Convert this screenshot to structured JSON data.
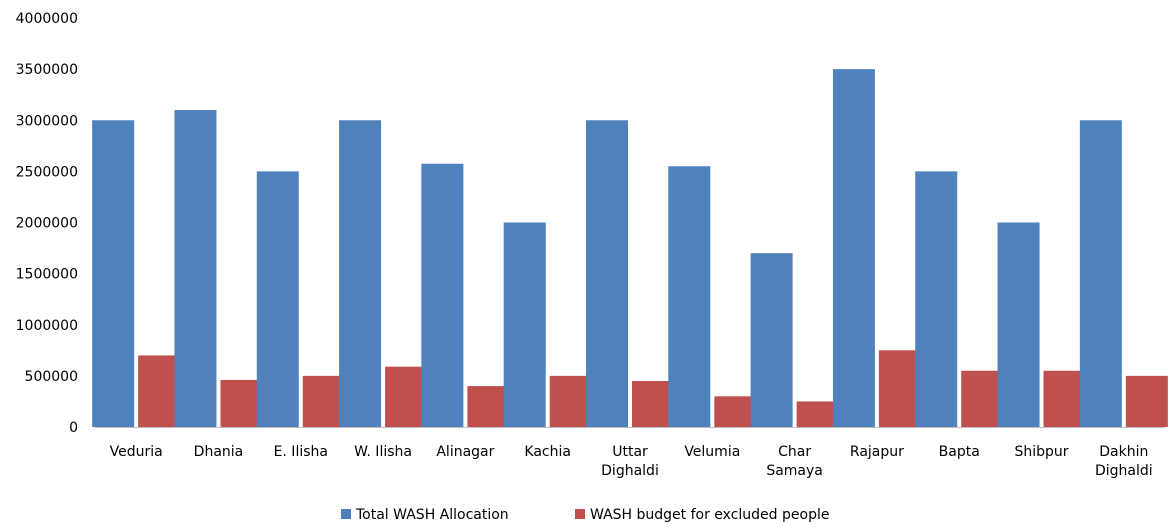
{
  "chart_data": {
    "type": "bar",
    "categories": [
      [
        "Veduria"
      ],
      [
        "Dhania"
      ],
      [
        "E. Ilisha"
      ],
      [
        "W. Ilisha"
      ],
      [
        "Alinagar"
      ],
      [
        "Kachia"
      ],
      [
        "Uttar",
        "Dighaldi"
      ],
      [
        "Velumia"
      ],
      [
        "Char",
        "Samaya"
      ],
      [
        "Rajapur"
      ],
      [
        "Bapta"
      ],
      [
        "Shibpur"
      ],
      [
        "Dakhin",
        "Dighaldi"
      ]
    ],
    "series": [
      {
        "name": "Total WASH Allocation",
        "color": "#4F81BD",
        "values": [
          3000000,
          3100000,
          2500000,
          3000000,
          2575000,
          2000000,
          3000000,
          2550000,
          1700000,
          3500000,
          2500000,
          2000000,
          3000000
        ]
      },
      {
        "name": "WASH budget for excluded people",
        "color": "#C0504D",
        "values": [
          700000,
          460000,
          500000,
          590000,
          400000,
          500000,
          450000,
          300000,
          250000,
          750000,
          550000,
          550000,
          500000
        ]
      }
    ],
    "ylim": [
      0,
      4000000
    ],
    "yticks": [
      "0",
      "500000",
      "1000000",
      "1500000",
      "2000000",
      "2500000",
      "3000000",
      "3500000",
      "4000000"
    ],
    "grid": false,
    "legend_position": "bottom"
  }
}
